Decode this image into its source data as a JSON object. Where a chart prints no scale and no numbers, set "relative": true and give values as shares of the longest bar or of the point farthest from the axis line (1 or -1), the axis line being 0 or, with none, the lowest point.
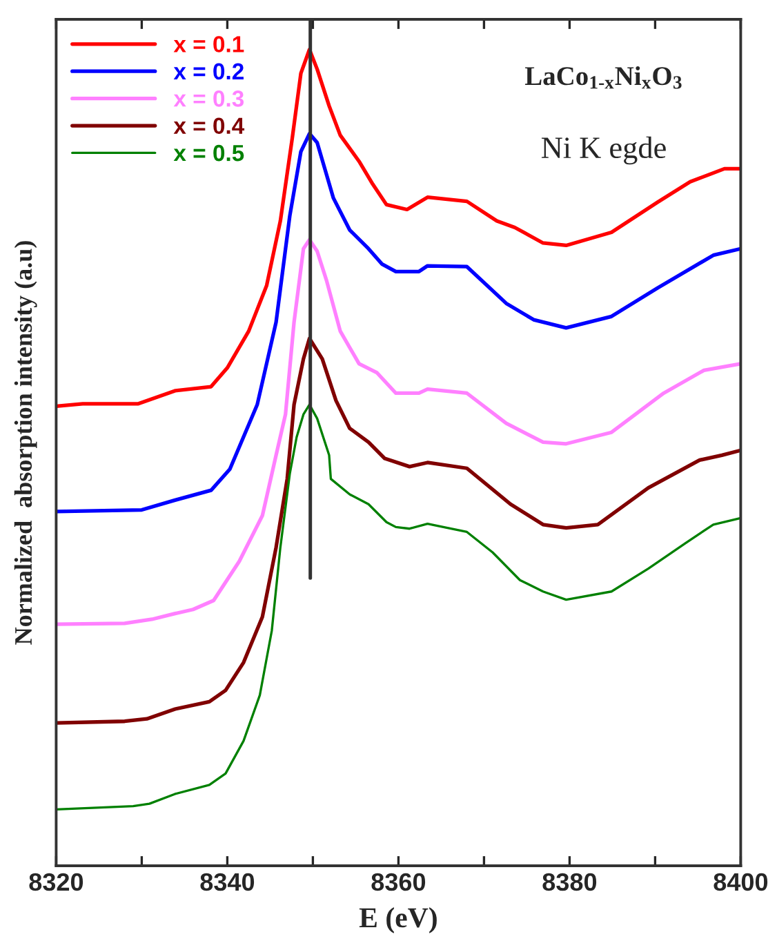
{
  "chart_data": {
    "type": "line",
    "xlabel": "E (eV)",
    "ylabel": "Normalized  absorption intensity (a.u)",
    "relative": true,
    "xlim": [
      8320,
      8400
    ],
    "xticks": [
      8320,
      {
        "value": 8330,
        "label": null
      },
      8340,
      {
        "value": 8350,
        "label": null
      },
      8360,
      {
        "value": 8370,
        "label": null
      },
      8380,
      {
        "value": 8390,
        "label": null
      },
      8400
    ],
    "tick_labels": "x",
    "grid": false,
    "legend": "top left",
    "line_style": "solid",
    "marker": "none",
    "annotations": [
      "LaCo$_{1-x}$Ni$_{x}$O$_{3}$",
      "Ni K egde"
    ],
    "ref_lines": [
      {
        "axis": "x",
        "value": 8349.7,
        "color": "#333333"
      }
    ],
    "series": [
      {
        "name": "x = 0.1",
        "color": "#ff0000",
        "x": [
          8320.0,
          8323.1,
          8329.6,
          8333.9,
          8338.1,
          8340.0,
          8342.5,
          8344.6,
          8346.2,
          8347.6,
          8348.6,
          8349.6,
          8350.5,
          8351.9,
          8353.2,
          8355.4,
          8357.0,
          8358.6,
          8361.0,
          8363.4,
          8368.0,
          8371.5,
          8373.6,
          8376.9,
          8379.6,
          8384.9,
          8390.3,
          8394.1,
          8398.1,
          8400.0
        ],
        "values": [
          0.563,
          0.566,
          0.566,
          0.582,
          0.587,
          0.61,
          0.655,
          0.711,
          0.79,
          0.892,
          0.971,
          1.0,
          0.976,
          0.931,
          0.895,
          0.863,
          0.835,
          0.81,
          0.804,
          0.819,
          0.814,
          0.79,
          0.782,
          0.763,
          0.76,
          0.776,
          0.813,
          0.838,
          0.854,
          0.854
        ]
      },
      {
        "name": "x = 0.2",
        "color": "#0000ff",
        "x": [
          8320.0,
          8330.0,
          8333.9,
          8338.1,
          8340.3,
          8343.5,
          8345.7,
          8347.3,
          8348.6,
          8349.6,
          8350.5,
          8352.4,
          8354.3,
          8356.5,
          8358.1,
          8359.7,
          8362.4,
          8363.4,
          8368.0,
          8372.6,
          8375.8,
          8379.6,
          8384.9,
          8390.3,
          8396.8,
          8400.0
        ],
        "values": [
          0.434,
          0.436,
          0.448,
          0.46,
          0.486,
          0.565,
          0.666,
          0.796,
          0.875,
          0.897,
          0.886,
          0.818,
          0.779,
          0.756,
          0.737,
          0.728,
          0.728,
          0.735,
          0.734,
          0.689,
          0.669,
          0.659,
          0.673,
          0.708,
          0.748,
          0.756
        ]
      },
      {
        "name": "x = 0.3",
        "color": "#ff80ff",
        "x": [
          8320.0,
          8328.0,
          8331.2,
          8333.9,
          8336.0,
          8338.4,
          8341.4,
          8344.1,
          8345.7,
          8346.8,
          8347.8,
          8348.9,
          8349.6,
          8350.5,
          8351.6,
          8353.2,
          8355.4,
          8357.5,
          8359.7,
          8362.4,
          8363.4,
          8368.0,
          8372.6,
          8376.9,
          8379.6,
          8384.9,
          8391.0,
          8395.7,
          8400.0
        ],
        "values": [
          0.296,
          0.297,
          0.302,
          0.309,
          0.314,
          0.325,
          0.373,
          0.429,
          0.503,
          0.553,
          0.666,
          0.756,
          0.767,
          0.753,
          0.717,
          0.655,
          0.615,
          0.604,
          0.579,
          0.579,
          0.584,
          0.579,
          0.542,
          0.519,
          0.517,
          0.531,
          0.579,
          0.607,
          0.615
        ]
      },
      {
        "name": "x = 0.4",
        "color": "#800000",
        "x": [
          8320.0,
          8328.0,
          8330.6,
          8333.9,
          8337.9,
          8339.8,
          8341.9,
          8344.1,
          8345.7,
          8347.0,
          8347.8,
          8348.9,
          8349.6,
          8351.1,
          8352.7,
          8354.3,
          8356.5,
          8358.4,
          8361.3,
          8363.4,
          8368.0,
          8373.1,
          8376.9,
          8379.6,
          8383.3,
          8389.2,
          8395.2,
          8397.8,
          8400.0
        ],
        "values": [
          0.175,
          0.177,
          0.18,
          0.192,
          0.201,
          0.215,
          0.249,
          0.305,
          0.39,
          0.474,
          0.565,
          0.621,
          0.646,
          0.621,
          0.57,
          0.536,
          0.519,
          0.499,
          0.489,
          0.494,
          0.487,
          0.443,
          0.418,
          0.414,
          0.418,
          0.463,
          0.497,
          0.503,
          0.509
        ]
      },
      {
        "name": "x = 0.5",
        "color": "#008000",
        "x": [
          8320.0,
          8329.0,
          8330.9,
          8333.9,
          8337.9,
          8339.8,
          8341.9,
          8343.8,
          8345.2,
          8346.2,
          8347.3,
          8348.1,
          8348.9,
          8349.6,
          8350.5,
          8351.9,
          8352.1,
          8354.3,
          8356.5,
          8358.6,
          8359.7,
          8361.3,
          8363.4,
          8368.0,
          8371.0,
          8374.2,
          8376.9,
          8379.6,
          8384.9,
          8389.2,
          8393.5,
          8396.8,
          8400.0
        ],
        "values": [
          0.069,
          0.073,
          0.076,
          0.088,
          0.099,
          0.113,
          0.153,
          0.209,
          0.288,
          0.39,
          0.48,
          0.525,
          0.553,
          0.565,
          0.548,
          0.503,
          0.474,
          0.455,
          0.443,
          0.421,
          0.415,
          0.413,
          0.419,
          0.409,
          0.384,
          0.35,
          0.336,
          0.326,
          0.336,
          0.364,
          0.395,
          0.418,
          0.426
        ]
      }
    ]
  }
}
